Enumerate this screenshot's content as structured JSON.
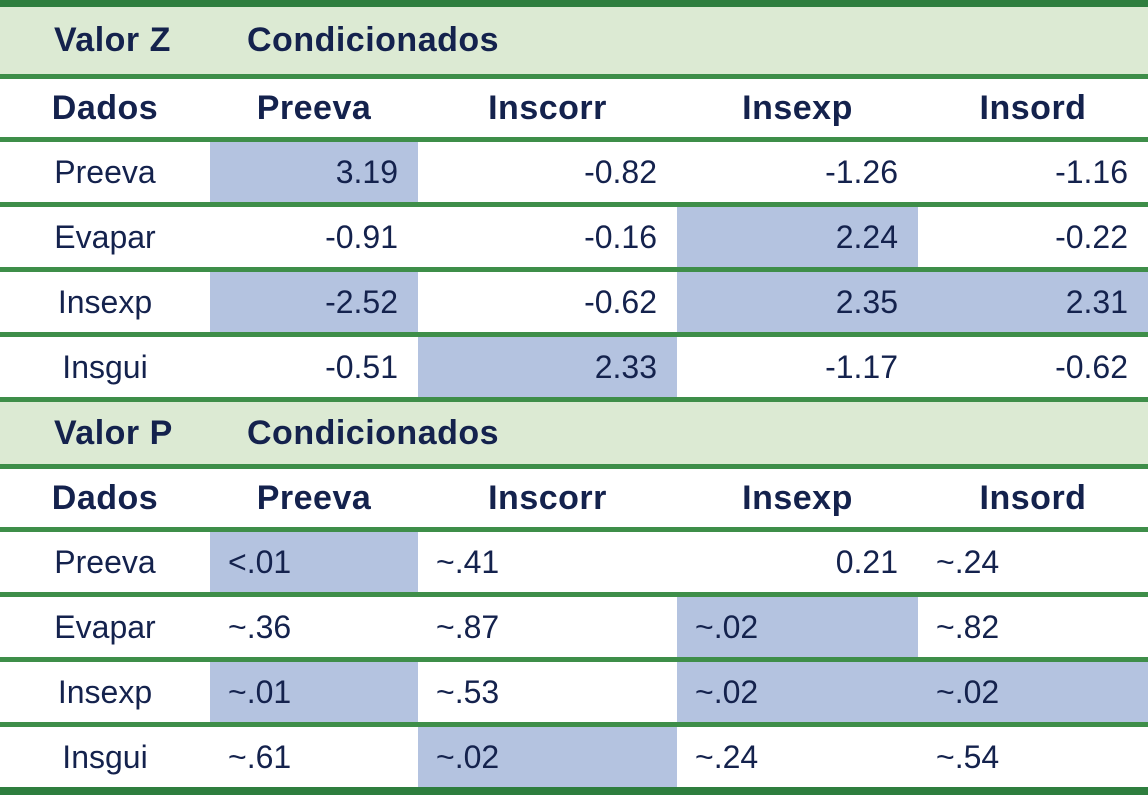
{
  "colors": {
    "header_band_green": "#dcead3",
    "grid_line_green": "#3e8e49",
    "outer_border_green": "#2e7e3e",
    "highlight_blue": "#b4c3e0",
    "text_navy": "#14224d"
  },
  "chart_data": [
    {
      "type": "table",
      "title": "Valor Z",
      "subtitle": "Condicionados",
      "columns": [
        "Dados",
        "Preeva",
        "Inscorr",
        "Insexp",
        "Insord"
      ],
      "align": "right",
      "rows": [
        {
          "label": "Preeva",
          "cells": [
            {
              "v": "3.19",
              "hl": true
            },
            {
              "v": "-0.82"
            },
            {
              "v": "-1.26"
            },
            {
              "v": "-1.16"
            }
          ]
        },
        {
          "label": "Evapar",
          "cells": [
            {
              "v": "-0.91"
            },
            {
              "v": "-0.16"
            },
            {
              "v": "2.24",
              "hl": true
            },
            {
              "v": "-0.22"
            }
          ]
        },
        {
          "label": "Insexp",
          "cells": [
            {
              "v": "-2.52",
              "hl": true
            },
            {
              "v": "-0.62"
            },
            {
              "v": "2.35",
              "hl": true
            },
            {
              "v": "2.31",
              "hl": true
            }
          ]
        },
        {
          "label": "Insgui",
          "cells": [
            {
              "v": "-0.51"
            },
            {
              "v": "2.33",
              "hl": true
            },
            {
              "v": "-1.17"
            },
            {
              "v": "-0.62"
            }
          ]
        }
      ]
    },
    {
      "type": "table",
      "title": "Valor P",
      "subtitle": "Condicionados",
      "columns": [
        "Dados",
        "Preeva",
        "Inscorr",
        "Insexp",
        "Insord"
      ],
      "align": "left",
      "rows": [
        {
          "label": "Preeva",
          "cells": [
            {
              "v": "<.01",
              "hl": true
            },
            {
              "v": "~.41"
            },
            {
              "v": "0.21",
              "align": "right"
            },
            {
              "v": "~.24"
            }
          ]
        },
        {
          "label": "Evapar",
          "cells": [
            {
              "v": "~.36"
            },
            {
              "v": "~.87"
            },
            {
              "v": "~.02",
              "hl": true
            },
            {
              "v": "~.82"
            }
          ]
        },
        {
          "label": "Insexp",
          "cells": [
            {
              "v": "~.01",
              "hl": true
            },
            {
              "v": "~.53"
            },
            {
              "v": "~.02",
              "hl": true
            },
            {
              "v": "~.02",
              "hl": true
            }
          ]
        },
        {
          "label": "Insgui",
          "cells": [
            {
              "v": "~.61"
            },
            {
              "v": "~.02",
              "hl": true
            },
            {
              "v": "~.24"
            },
            {
              "v": "~.54"
            }
          ]
        }
      ]
    }
  ]
}
